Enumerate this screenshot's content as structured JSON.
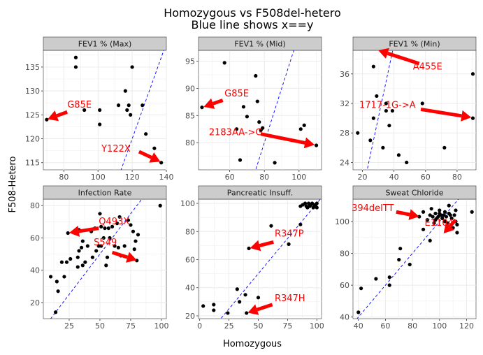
{
  "chart_data": {
    "type": "scatter",
    "title": "Homozygous vs F508del-hetero",
    "subtitle": "Blue line shows x==y",
    "xlabel": "Homozygous",
    "ylabel": "F508-Hetero",
    "colors": {
      "panel_bg": "#ffffff",
      "strip_bg": "#cccccc",
      "grid": "#ebebeb",
      "point": "#000000",
      "identity_line": "#0000ff",
      "annotation": "#ff0000"
    },
    "panels": [
      {
        "id": "fev1-max",
        "strip": "FEV1 % (Max)",
        "xlim": [
          68,
          140
        ],
        "ylim": [
          113.5,
          138.5
        ],
        "xticks": [
          80,
          100,
          120,
          140
        ],
        "yticks": [
          115,
          120,
          125,
          130,
          135
        ],
        "points": [
          [
            70,
            124
          ],
          [
            87,
            137
          ],
          [
            87,
            135
          ],
          [
            92,
            126
          ],
          [
            101,
            126
          ],
          [
            101,
            123
          ],
          [
            112,
            127
          ],
          [
            116,
            130
          ],
          [
            117,
            126
          ],
          [
            118,
            127
          ],
          [
            119,
            125
          ],
          [
            120,
            135
          ],
          [
            126,
            127
          ],
          [
            128,
            121
          ],
          [
            133,
            118
          ],
          [
            137,
            115
          ]
        ],
        "annotations": [
          {
            "label": "G85E",
            "text_at": [
              82,
              126.5
            ],
            "arrow_from": [
              82,
              125.6
            ],
            "arrow_to": [
              70.5,
              124.1
            ]
          },
          {
            "label": "Y122X",
            "text_at": [
              102,
              117.3
            ],
            "arrow_from": [
              124,
              117.3
            ],
            "arrow_to": [
              136.5,
              115.2
            ]
          }
        ]
      },
      {
        "id": "fev1-mid",
        "strip": "FEV1 % (Mid)",
        "xlim": [
          42,
          113
        ],
        "ylim": [
          75,
          97
        ],
        "xticks": [
          60,
          80,
          100
        ],
        "yticks": [
          80,
          85,
          90,
          95
        ],
        "points": [
          [
            44,
            86.5
          ],
          [
            57,
            94.7
          ],
          [
            64,
            82.5
          ],
          [
            66,
            76.8
          ],
          [
            68,
            86.6
          ],
          [
            70,
            84.8
          ],
          [
            75,
            92.3
          ],
          [
            76,
            87.6
          ],
          [
            77,
            83.8
          ],
          [
            78,
            82.3
          ],
          [
            79,
            82.7
          ],
          [
            86,
            76.3
          ],
          [
            101,
            82.5
          ],
          [
            103,
            83.2
          ],
          [
            110,
            79.5
          ]
        ],
        "annotations": [
          {
            "label": "G85E",
            "text_at": [
              57,
              88.5
            ],
            "arrow_from": [
              56,
              87.8
            ],
            "arrow_to": [
              45,
              86.6
            ]
          },
          {
            "label": "2183AA->G",
            "text_at": [
              48,
              81.4
            ],
            "arrow_from": [
              78,
              81.6
            ],
            "arrow_to": [
              109,
              79.6
            ]
          }
        ]
      },
      {
        "id": "fev1-min",
        "strip": "FEV1 % (Min)",
        "xlim": [
          14,
          92
        ],
        "ylim": [
          23,
          39.2
        ],
        "xticks": [
          20,
          40,
          60,
          80
        ],
        "yticks": [
          24,
          28,
          32,
          36
        ],
        "points": [
          [
            17,
            28
          ],
          [
            25,
            27
          ],
          [
            27,
            37
          ],
          [
            27,
            30
          ],
          [
            29,
            33
          ],
          [
            33,
            26
          ],
          [
            35,
            31
          ],
          [
            35,
            32
          ],
          [
            37,
            29
          ],
          [
            39,
            31
          ],
          [
            43,
            25
          ],
          [
            48,
            24
          ],
          [
            58,
            32
          ],
          [
            72,
            26
          ],
          [
            90,
            30
          ],
          [
            90,
            36
          ]
        ],
        "annotations": [
          {
            "label": "A455E",
            "text_at": [
              52,
              36.6
            ],
            "arrow_from": [
              56,
              37.4
            ],
            "arrow_to": [
              30,
              39.2
            ]
          },
          {
            "label": "1717-1G->A",
            "text_at": [
              18,
              31.4
            ],
            "arrow_from": [
              57,
              31.2
            ],
            "arrow_to": [
              89,
              30.1
            ]
          }
        ]
      },
      {
        "id": "infection-rate",
        "strip": "Infection Rate",
        "xlim": [
          4,
          104
        ],
        "ylim": [
          10,
          84
        ],
        "xticks": [
          25,
          50,
          75,
          100
        ],
        "yticks": [
          20,
          40,
          60,
          80
        ],
        "points": [
          [
            10,
            36
          ],
          [
            14,
            14
          ],
          [
            15,
            33
          ],
          [
            16,
            27
          ],
          [
            19,
            45
          ],
          [
            21,
            36
          ],
          [
            23,
            45
          ],
          [
            24,
            63
          ],
          [
            26,
            47
          ],
          [
            32,
            48
          ],
          [
            32,
            42
          ],
          [
            33,
            52
          ],
          [
            33,
            65
          ],
          [
            35,
            54
          ],
          [
            36,
            43
          ],
          [
            36,
            58
          ],
          [
            38,
            45
          ],
          [
            40,
            55
          ],
          [
            43,
            64
          ],
          [
            44,
            48
          ],
          [
            46,
            66
          ],
          [
            47,
            52
          ],
          [
            49,
            55
          ],
          [
            50,
            75
          ],
          [
            51,
            67
          ],
          [
            51,
            55
          ],
          [
            53,
            60
          ],
          [
            54,
            66
          ],
          [
            55,
            43
          ],
          [
            56,
            48
          ],
          [
            57,
            66
          ],
          [
            58,
            60
          ],
          [
            60,
            67
          ],
          [
            62,
            55
          ],
          [
            64,
            69
          ],
          [
            65,
            54
          ],
          [
            66,
            73
          ],
          [
            67,
            49
          ],
          [
            70,
            55
          ],
          [
            73,
            71
          ],
          [
            75,
            68
          ],
          [
            77,
            64
          ],
          [
            78,
            53
          ],
          [
            79,
            58
          ],
          [
            80,
            46
          ],
          [
            81,
            62
          ],
          [
            99,
            80
          ]
        ],
        "annotations": [
          {
            "label": "Q493X",
            "text_at": [
              49,
              68.5
            ],
            "arrow_from": [
              49,
              66
            ],
            "arrow_to": [
              25,
              63.2
            ]
          },
          {
            "label": "S549",
            "text_at": [
              45,
              55.5
            ],
            "arrow_from": [
              60,
              51
            ],
            "arrow_to": [
              80,
              46.2
            ]
          }
        ]
      },
      {
        "id": "pancreatic-insuff",
        "strip": "Pancreatic Insuff.",
        "xlim": [
          -1,
          104
        ],
        "ylim": [
          18,
          103
        ],
        "xticks": [
          0,
          25,
          50,
          75,
          100
        ],
        "yticks": [
          20,
          40,
          60,
          80,
          100
        ],
        "points": [
          [
            3,
            27
          ],
          [
            12,
            28
          ],
          [
            12,
            24
          ],
          [
            24,
            22
          ],
          [
            32,
            39
          ],
          [
            34,
            30
          ],
          [
            39,
            35
          ],
          [
            40,
            22
          ],
          [
            42,
            68
          ],
          [
            50,
            33
          ],
          [
            61,
            84
          ],
          [
            76,
            71
          ],
          [
            86,
            85
          ],
          [
            86,
            98
          ],
          [
            88,
            99
          ],
          [
            90,
            100
          ],
          [
            91,
            98
          ],
          [
            92,
            97
          ],
          [
            93,
            100
          ],
          [
            94,
            98
          ],
          [
            95,
            99
          ],
          [
            96,
            100
          ],
          [
            97,
            97
          ],
          [
            98,
            99
          ],
          [
            99,
            98
          ],
          [
            100,
            100
          ],
          [
            100,
            97
          ]
        ],
        "annotations": [
          {
            "label": "R347P",
            "text_at": [
              64,
              76.5
            ],
            "arrow_from": [
              63,
              72.5
            ],
            "arrow_to": [
              43,
              68.2
            ]
          },
          {
            "label": "R347H",
            "text_at": [
              64,
              30.5
            ],
            "arrow_from": [
              62,
              28
            ],
            "arrow_to": [
              41,
              22.2
            ]
          }
        ]
      },
      {
        "id": "sweat-chloride",
        "strip": "Sweat Chloride",
        "xlim": [
          36,
          127
        ],
        "ylim": [
          39,
          114
        ],
        "xticks": [
          40,
          60,
          80,
          100,
          120
        ],
        "yticks": [
          40,
          60,
          80,
          100
        ],
        "points": [
          [
            40,
            43
          ],
          [
            42,
            58
          ],
          [
            53,
            64
          ],
          [
            63,
            65
          ],
          [
            63,
            60
          ],
          [
            70,
            76
          ],
          [
            71,
            83
          ],
          [
            78,
            73
          ],
          [
            85,
            103
          ],
          [
            88,
            106
          ],
          [
            88,
            95
          ],
          [
            91,
            101
          ],
          [
            93,
            88
          ],
          [
            93,
            104
          ],
          [
            94,
            108
          ],
          [
            95,
            103
          ],
          [
            96,
            99
          ],
          [
            97,
            101
          ],
          [
            97,
            105
          ],
          [
            98,
            102
          ],
          [
            99,
            103
          ],
          [
            100,
            107
          ],
          [
            100,
            105
          ],
          [
            101,
            104
          ],
          [
            102,
            102
          ],
          [
            103,
            104
          ],
          [
            104,
            106
          ],
          [
            104,
            100
          ],
          [
            105,
            103
          ],
          [
            106,
            99
          ],
          [
            107,
            105
          ],
          [
            107,
            110
          ],
          [
            108,
            104
          ],
          [
            109,
            102
          ],
          [
            110,
            96
          ],
          [
            111,
            104
          ],
          [
            112,
            100
          ],
          [
            112,
            107
          ],
          [
            113,
            93
          ],
          [
            113,
            98
          ],
          [
            124,
            106
          ]
        ],
        "annotations": [
          {
            "label": "394delTT",
            "text_at": [
              35,
              106.5
            ],
            "arrow_from": [
              68,
              106
            ],
            "arrow_to": [
              85,
              103.1
            ]
          },
          {
            "label": "E1104",
            "text_at": [
              89,
              97.3
            ],
            "arrow_from": [
              112,
              101
            ],
            "arrow_to": [
              103,
              92.5
            ]
          }
        ]
      }
    ]
  }
}
